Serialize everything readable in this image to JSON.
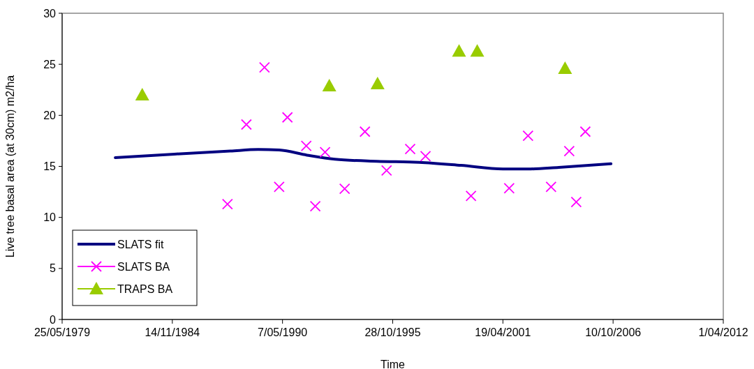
{
  "chart_data": {
    "type": "scatter",
    "xlabel": "Time",
    "ylabel": "Live tree basal area (at 30cm) m2/ha",
    "xlim": [
      "1979-05-25",
      "2012-04-01"
    ],
    "xticks": [
      {
        "value": "1979-05-25",
        "label": "25/05/1979"
      },
      {
        "value": "1984-11-14",
        "label": "14/11/1984"
      },
      {
        "value": "1990-05-07",
        "label": "7/05/1990"
      },
      {
        "value": "1995-10-28",
        "label": "28/10/1995"
      },
      {
        "value": "2001-04-19",
        "label": "19/04/2001"
      },
      {
        "value": "2006-10-10",
        "label": "10/10/2006"
      },
      {
        "value": "2012-04-01",
        "label": "1/04/2012"
      }
    ],
    "ylim": [
      0,
      30
    ],
    "yticks": [
      0,
      5,
      10,
      15,
      20,
      25,
      30
    ],
    "grid": false,
    "legend": "bottom left",
    "series": [
      {
        "name": "SLATS fit",
        "type": "line",
        "marker": "none",
        "line_style": "solid",
        "color": "#000080",
        "x": [
          "1982-01-13",
          "1984-12-22",
          "1987-10-02",
          "1989-02-20",
          "1990-03-07",
          "1991-07-25",
          "1992-12-13",
          "1995-01-12",
          "1997-02-21",
          "1999-03-23",
          "2001-04-19",
          "2002-09-08",
          "2004-01-28",
          "2006-09-02"
        ],
        "values": [
          15.85,
          16.2,
          16.5,
          16.65,
          16.6,
          16.1,
          15.7,
          15.5,
          15.4,
          15.1,
          14.75,
          14.75,
          14.9,
          15.25
        ]
      },
      {
        "name": "SLATS BA",
        "marker": "cross",
        "color": "#ff00ff",
        "x": [
          "1987-08-12",
          "1988-07-20",
          "1989-06-14",
          "1990-03-07",
          "1990-08-04",
          "1991-07-12",
          "1991-12-23",
          "1992-06-17",
          "1993-06-08",
          "1994-06-11",
          "1995-07-09",
          "1996-09-09",
          "1997-06-15",
          "1999-09-18",
          "2001-08-11",
          "2002-07-19",
          "2003-09-10",
          "2004-08-05",
          "2004-12-10",
          "2005-05-24"
        ],
        "values": [
          11.3,
          19.1,
          24.7,
          13.0,
          19.8,
          17.0,
          11.1,
          16.4,
          12.8,
          18.4,
          14.6,
          16.7,
          16.0,
          12.1,
          12.85,
          18.0,
          13.0,
          16.5,
          11.5,
          18.4
        ]
      },
      {
        "name": "TRAPS BA",
        "marker": "triangle",
        "color": "#99cc00",
        "x": [
          "1983-05-18",
          "1992-09-02",
          "1995-01-26",
          "1999-02-13",
          "2000-01-09",
          "2004-05-21"
        ],
        "values": [
          22.0,
          22.9,
          23.1,
          26.3,
          26.3,
          24.6
        ]
      }
    ]
  }
}
